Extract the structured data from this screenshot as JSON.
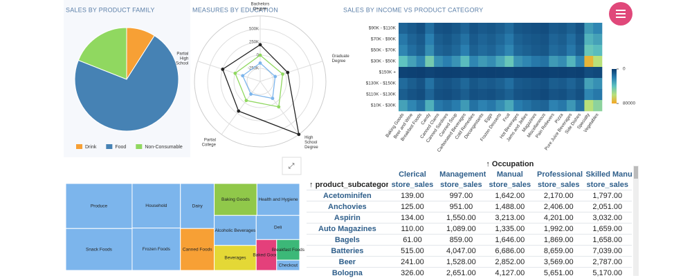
{
  "chart_data": [
    {
      "type": "pie",
      "title": "SALES BY PRODUCT FAMILY",
      "categories": [
        "Drink",
        "Food",
        "Non-Consumable"
      ],
      "values": [
        9,
        72,
        19
      ],
      "colors": [
        "#f7a035",
        "#4682b4",
        "#90d860"
      ],
      "legend": "bottom"
    },
    {
      "type": "radar",
      "title": "MEASURES BY EDUCATION",
      "categories": [
        "Bachelors Degree",
        "Graduate Degree",
        "High School Degree",
        "Partial College",
        "Partial High School"
      ],
      "rlim": [
        -500000,
        750000
      ],
      "rticks": [
        {
          "value": -250000,
          "label": "-250K"
        },
        {
          "value": 0,
          "label": "0"
        },
        {
          "value": 250000,
          "label": "250K"
        },
        {
          "value": 500000,
          "label": "500K"
        }
      ],
      "series": [
        {
          "color": "#222222",
          "values": [
            200000,
            50000,
            750000,
            200000,
            250000
          ]
        },
        {
          "color": "#90d860",
          "values": [
            0,
            -50000,
            100000,
            -50000,
            0
          ]
        },
        {
          "color": "#7cb5ec",
          "values": [
            -150000,
            -200000,
            -100000,
            -200000,
            -150000
          ]
        }
      ]
    },
    {
      "type": "heatmap",
      "title": "SALES BY INCOME VS PRODUCT CATEGORY",
      "x": [
        "Baking Goods",
        "Beer and Wine",
        "Breakfast Foods",
        "Candy",
        "Canned Clams",
        "Canned Sardines",
        "Canned Soup",
        "Carbonated Beverages",
        "Cold Remedies",
        "Decongestants",
        "Eggs",
        "Frozen Desserts",
        "Fruit",
        "Hot Beverages",
        "Jams and Jellies",
        "Magazines",
        "Miscellaneous",
        "Pain Relievers",
        "Pizza",
        "Pure Juice Beverages",
        "Side Dishes",
        "Specialty",
        "Vegetables"
      ],
      "y": [
        "$90K - $110K",
        "$70K - $90K",
        "$50K - $70K",
        "$30K - $50K",
        "$150K +",
        "$130K - $150K",
        "$110K - $130K",
        "$10K - $30K"
      ],
      "values": [
        [
          12000,
          9000,
          6000,
          15000,
          7000,
          6000,
          8000,
          12000,
          7000,
          9000,
          8000,
          10000,
          14000,
          8000,
          7000,
          6000,
          5000,
          9000,
          8000,
          11000,
          7000,
          28000,
          22000
        ],
        [
          18000,
          12000,
          9000,
          20000,
          10000,
          8000,
          11000,
          16000,
          9000,
          12000,
          10000,
          13000,
          18000,
          11000,
          9000,
          8000,
          7000,
          12000,
          10000,
          15000,
          9000,
          35000,
          30000
        ],
        [
          22000,
          15000,
          11000,
          24000,
          12000,
          10000,
          13000,
          20000,
          11000,
          14000,
          12000,
          16000,
          22000,
          13000,
          11000,
          9000,
          8000,
          14000,
          12000,
          18000,
          11000,
          42000,
          38000
        ],
        [
          40000,
          30000,
          22000,
          45000,
          25000,
          20000,
          26000,
          38000,
          22000,
          28000,
          24000,
          32000,
          42000,
          26000,
          22000,
          18000,
          16000,
          28000,
          24000,
          36000,
          22000,
          75000,
          60000
        ],
        [
          2000,
          1500,
          1000,
          2500,
          1200,
          1000,
          1300,
          2000,
          1100,
          1400,
          1200,
          1600,
          2200,
          1300,
          1100,
          900,
          800,
          1400,
          1200,
          1800,
          1100,
          5000,
          4000
        ],
        [
          14000,
          10000,
          7000,
          16000,
          8000,
          7000,
          9000,
          13000,
          8000,
          10000,
          9000,
          11000,
          15000,
          9000,
          8000,
          7000,
          6000,
          10000,
          9000,
          12000,
          8000,
          30000,
          25000
        ],
        [
          10000,
          7000,
          5000,
          12000,
          6000,
          5000,
          7000,
          10000,
          6000,
          7000,
          6000,
          8000,
          11000,
          7000,
          6000,
          5000,
          4000,
          7000,
          6000,
          9000,
          6000,
          22000,
          18000
        ],
        [
          30000,
          22000,
          16000,
          34000,
          18000,
          15000,
          19000,
          28000,
          16000,
          21000,
          18000,
          24000,
          32000,
          19000,
          16000,
          13000,
          12000,
          21000,
          18000,
          27000,
          16000,
          60000,
          50000
        ]
      ],
      "colorscale": [
        "#0b3c6e",
        "#2a7fb0",
        "#5fc3c0",
        "#b8e07a",
        "#f5a623"
      ],
      "clim": [
        0,
        80000
      ],
      "cticks": [
        0,
        80000
      ]
    },
    {
      "type": "treemap",
      "categories": [
        "Produce",
        "Snack Foods",
        "Household",
        "Frozen Foods",
        "Dairy",
        "Canned Foods",
        "Baking Goods",
        "Health and Hygiene",
        "Alcoholic Beverages",
        "Beverages",
        "Deli",
        "Baked Goods",
        "Breakfast Foods",
        "Checkout"
      ],
      "values": [
        5700,
        5300,
        4100,
        3900,
        2900,
        2700,
        2600,
        2600,
        2400,
        2000,
        2000,
        1200,
        900,
        450
      ],
      "colors": [
        "#7cb5ec",
        "#7cb5ec",
        "#7cb5ec",
        "#7cb5ec",
        "#7cb5ec",
        "#f7a035",
        "#90c84a",
        "#7cb5ec",
        "#7cb5ec",
        "#e4d836",
        "#7cb5ec",
        "#e4407b",
        "#3cb878",
        "#7cb5ec"
      ]
    }
  ],
  "table": {
    "group_header": "Occupation",
    "row_header": "product_subcategory",
    "measure": "store_sales",
    "columns": [
      "Clerical",
      "Management",
      "Manual",
      "Professional",
      "Skilled Manual"
    ],
    "rows": [
      {
        "label": "Acetominifen",
        "values": [
          "139.00",
          "997.00",
          "1,642.00",
          "2,170.00",
          "1,797.00"
        ]
      },
      {
        "label": "Anchovies",
        "values": [
          "125.00",
          "951.00",
          "1,488.00",
          "2,406.00",
          "2,051.00"
        ]
      },
      {
        "label": "Aspirin",
        "values": [
          "134.00",
          "1,550.00",
          "3,213.00",
          "4,201.00",
          "3,032.00"
        ]
      },
      {
        "label": "Auto Magazines",
        "values": [
          "110.00",
          "1,089.00",
          "1,335.00",
          "1,992.00",
          "1,659.00"
        ]
      },
      {
        "label": "Bagels",
        "values": [
          "61.00",
          "859.00",
          "1,646.00",
          "1,869.00",
          "1,658.00"
        ]
      },
      {
        "label": "Batteries",
        "values": [
          "515.00",
          "4,047.00",
          "6,686.00",
          "8,659.00",
          "7,039.00"
        ]
      },
      {
        "label": "Beer",
        "values": [
          "241.00",
          "1,528.00",
          "2,852.00",
          "3,569.00",
          "2,787.00"
        ]
      },
      {
        "label": "Bologna",
        "values": [
          "326.00",
          "2,651.00",
          "4,127.00",
          "5,651.00",
          "5,170.00"
        ]
      }
    ]
  }
}
